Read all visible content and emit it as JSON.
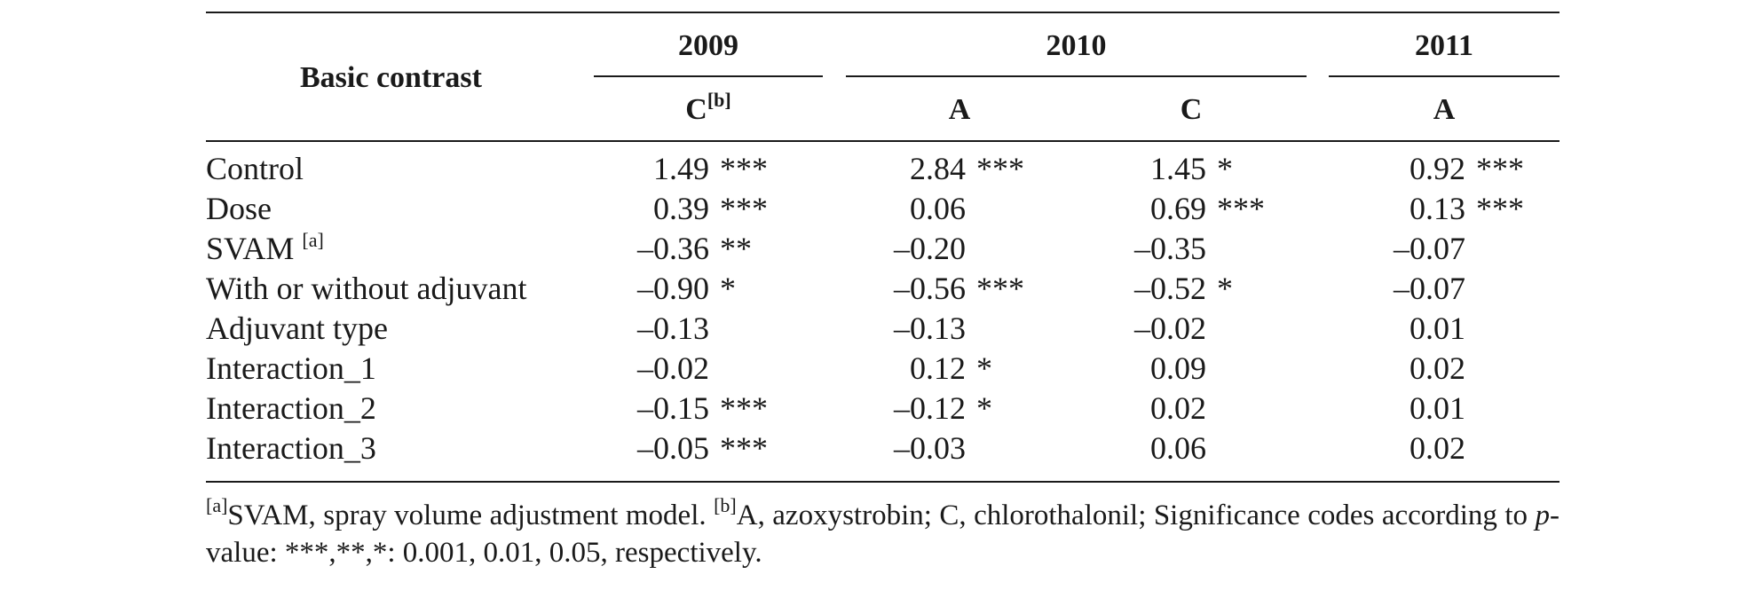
{
  "header": {
    "row_label": "Basic contrast",
    "years": [
      "2009",
      "2010",
      "2011"
    ],
    "fungicides": [
      "C",
      "A",
      "C",
      "A"
    ],
    "c_footnote_mark": "[b]"
  },
  "rows": [
    {
      "label": "Control",
      "mark": "",
      "cells": [
        [
          "1.49",
          "***"
        ],
        [
          "2.84",
          "***"
        ],
        [
          "1.45",
          "*"
        ],
        [
          "0.92",
          "***"
        ]
      ]
    },
    {
      "label": "Dose",
      "mark": "",
      "cells": [
        [
          "0.39",
          "***"
        ],
        [
          "0.06",
          ""
        ],
        [
          "0.69",
          "***"
        ],
        [
          "0.13",
          "***"
        ]
      ]
    },
    {
      "label": "SVAM",
      "mark": "[a]",
      "cells": [
        [
          "–0.36",
          "**"
        ],
        [
          "–0.20",
          ""
        ],
        [
          "–0.35",
          ""
        ],
        [
          "–0.07",
          ""
        ]
      ]
    },
    {
      "label": "With or without adjuvant",
      "mark": "",
      "cells": [
        [
          "–0.90",
          "*"
        ],
        [
          "–0.56",
          "***"
        ],
        [
          "–0.52",
          "*"
        ],
        [
          "–0.07",
          ""
        ]
      ]
    },
    {
      "label": "Adjuvant type",
      "mark": "",
      "cells": [
        [
          "–0.13",
          ""
        ],
        [
          "–0.13",
          ""
        ],
        [
          "–0.02",
          ""
        ],
        [
          "0.01",
          ""
        ]
      ]
    },
    {
      "label": "Interaction_1",
      "mark": "",
      "cells": [
        [
          "–0.02",
          ""
        ],
        [
          "0.12",
          "*"
        ],
        [
          "0.09",
          ""
        ],
        [
          "0.02",
          ""
        ]
      ]
    },
    {
      "label": "Interaction_2",
      "mark": "",
      "cells": [
        [
          "–0.15",
          "***"
        ],
        [
          "–0.12",
          "*"
        ],
        [
          "0.02",
          ""
        ],
        [
          "0.01",
          ""
        ]
      ]
    },
    {
      "label": "Interaction_3",
      "mark": "",
      "cells": [
        [
          "–0.05",
          "***"
        ],
        [
          "–0.03",
          ""
        ],
        [
          "0.06",
          ""
        ],
        [
          "0.02",
          ""
        ]
      ]
    }
  ],
  "footnote": {
    "a_mark": "[a]",
    "a_text": "SVAM, spray volume adjustment model. ",
    "b_mark": "[b]",
    "b_text": "A, azoxystrobin; C, chlorothalonil; Significance codes according to ",
    "p_italic": "p",
    "end_text": "-value: ***,**,*: 0.001, 0.01, 0.05, respectively."
  }
}
